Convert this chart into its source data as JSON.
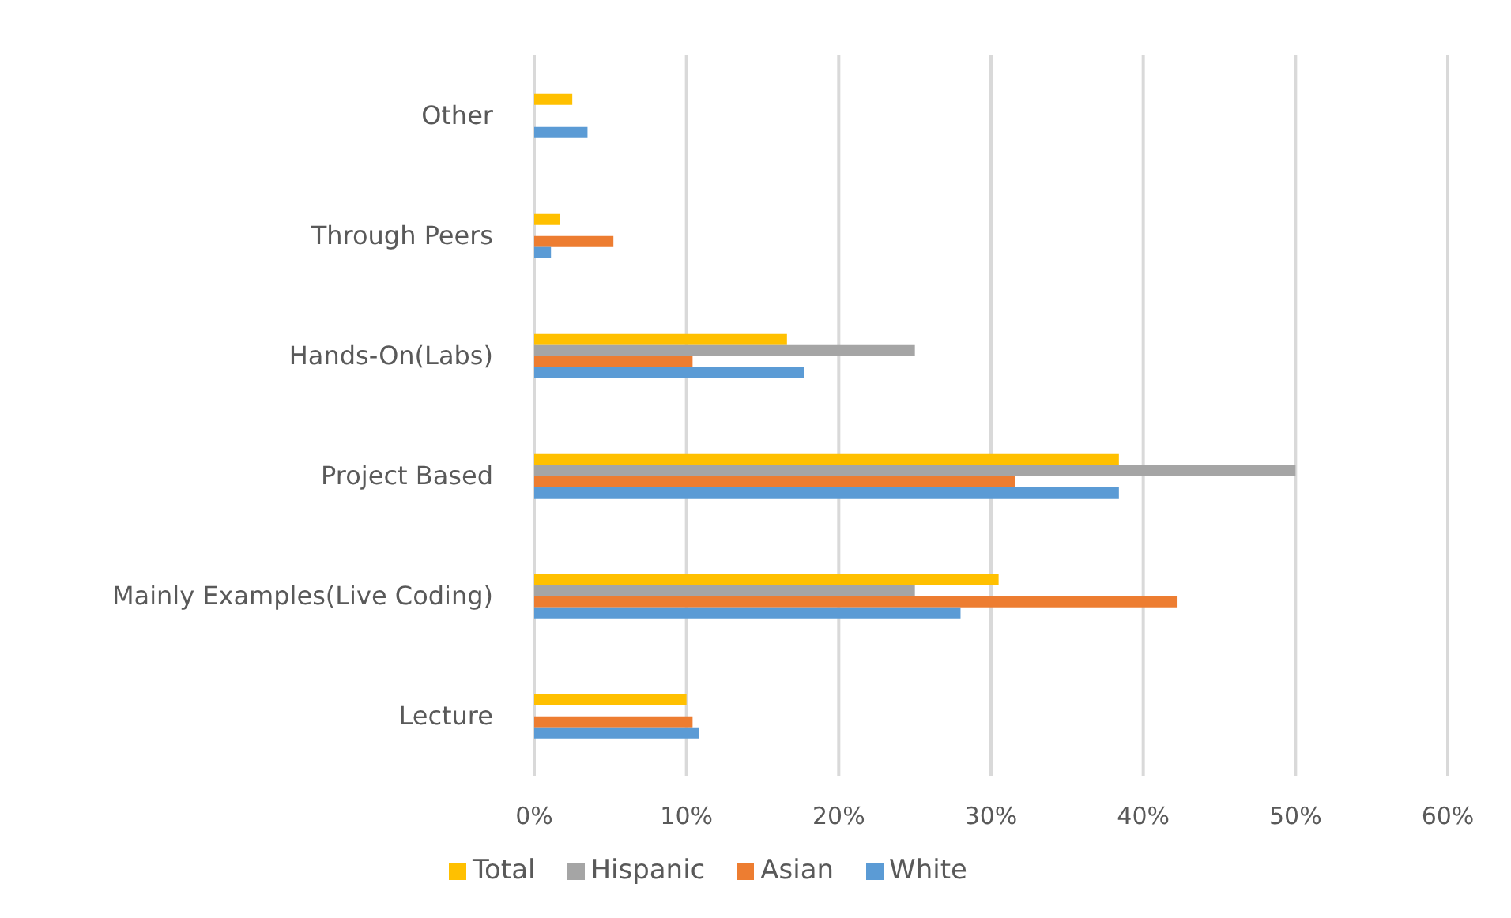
{
  "chart_data": {
    "type": "bar",
    "orientation": "horizontal",
    "categories": [
      "Other",
      "Through Peers",
      "Hands-On(Labs)",
      "Project Based",
      "Mainly Examples(Live Coding)",
      "Lecture"
    ],
    "series": [
      {
        "name": "Total",
        "color": "#ffc000",
        "values": [
          2.5,
          1.7,
          16.6,
          38.4,
          30.5,
          10.0
        ]
      },
      {
        "name": "Hispanic",
        "color": "#a5a5a5",
        "values": [
          null,
          null,
          25.0,
          50.0,
          25.0,
          null
        ]
      },
      {
        "name": "Asian",
        "color": "#ed7d31",
        "values": [
          null,
          5.2,
          10.4,
          31.6,
          42.2,
          10.4
        ]
      },
      {
        "name": "White",
        "color": "#5b9bd5",
        "values": [
          3.5,
          1.1,
          17.7,
          38.4,
          28.0,
          10.8
        ]
      }
    ],
    "xlim": [
      0,
      60
    ],
    "xticks": [
      {
        "value": 0,
        "label": "0%"
      },
      {
        "value": 10,
        "label": "10%"
      },
      {
        "value": 20,
        "label": "20%"
      },
      {
        "value": 30,
        "label": "30%"
      },
      {
        "value": 40,
        "label": "40%"
      },
      {
        "value": 50,
        "label": "50%"
      },
      {
        "value": 60,
        "label": "60%"
      }
    ],
    "grid": "x",
    "legend": "bottom"
  }
}
